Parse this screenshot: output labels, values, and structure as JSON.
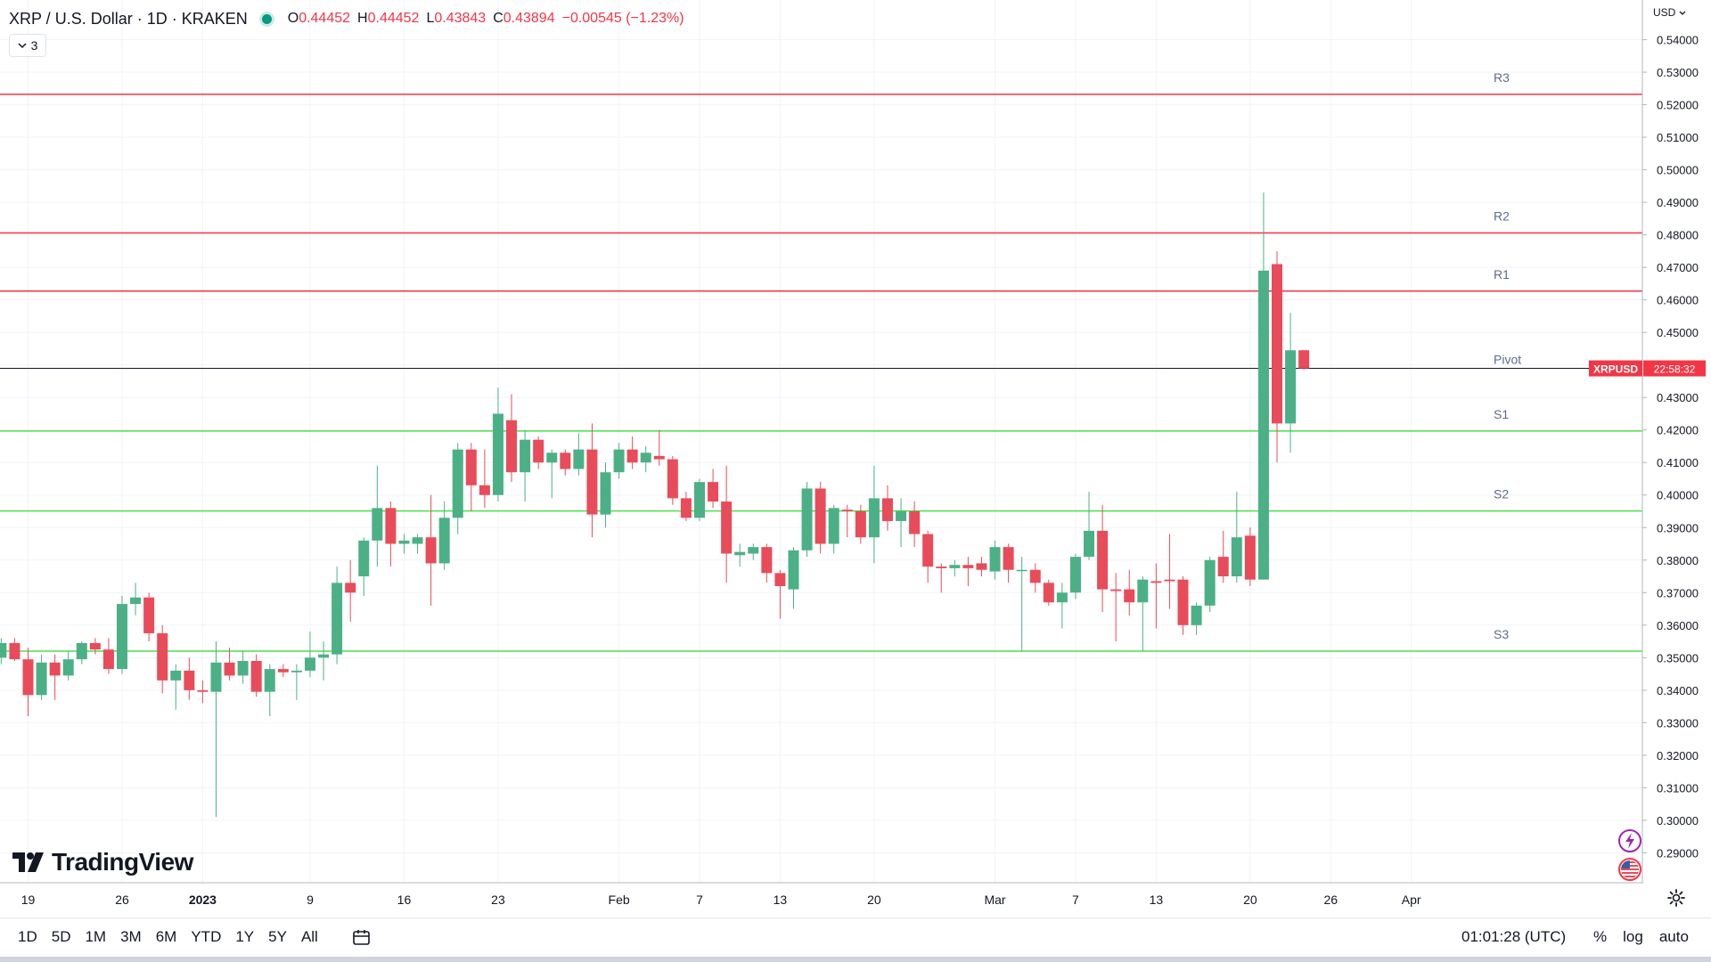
{
  "header": {
    "symbol": "XRP / U.S. Dollar · 1D · KRAKEN",
    "o_label": "O",
    "o_val": "0.44452",
    "h_label": "H",
    "h_val": "0.44452",
    "l_label": "L",
    "l_val": "0.43843",
    "c_label": "C",
    "c_val": "0.43894",
    "change": "−0.00545 (−1.23%)",
    "indicators_count": "3"
  },
  "currency": "USD",
  "branding": "TradingView",
  "bottom": {
    "ranges": [
      "1D",
      "5D",
      "1M",
      "3M",
      "6M",
      "YTD",
      "1Y",
      "5Y",
      "All"
    ],
    "clock": "01:01:28 (UTC)",
    "percent": "%",
    "log": "log",
    "auto": "auto"
  },
  "colors": {
    "up": "#4cb087",
    "down": "#e84c5a",
    "resistance": "#f23645",
    "support": "#4be04b",
    "last": "#131722",
    "price_tag": "#f23645"
  },
  "chart_data": {
    "type": "candlestick",
    "title": "XRP / U.S. Dollar · 1D · KRAKEN",
    "ylim": [
      0.2808,
      0.5522
    ],
    "y_ticks": [
      "0.29000",
      "0.30000",
      "0.31000",
      "0.32000",
      "0.33000",
      "0.34000",
      "0.35000",
      "0.36000",
      "0.37000",
      "0.38000",
      "0.39000",
      "0.40000",
      "0.41000",
      "0.42000",
      "0.43000",
      "0.44000",
      "0.45000",
      "0.46000",
      "0.47000",
      "0.48000",
      "0.49000",
      "0.50000",
      "0.51000",
      "0.52000",
      "0.53000",
      "0.54000"
    ],
    "x_labels": [
      {
        "text": "19",
        "date": "2022-12-19"
      },
      {
        "text": "26",
        "date": "2022-12-26"
      },
      {
        "text": "2023",
        "date": "2023-01-01"
      },
      {
        "text": "9",
        "date": "2023-01-09"
      },
      {
        "text": "16",
        "date": "2023-01-16"
      },
      {
        "text": "23",
        "date": "2023-01-23"
      },
      {
        "text": "Feb",
        "date": "2023-02-01"
      },
      {
        "text": "7",
        "date": "2023-02-07"
      },
      {
        "text": "13",
        "date": "2023-02-13"
      },
      {
        "text": "20",
        "date": "2023-02-20"
      },
      {
        "text": "Mar",
        "date": "2023-03-01"
      },
      {
        "text": "7",
        "date": "2023-03-07"
      },
      {
        "text": "13",
        "date": "2023-03-13"
      },
      {
        "text": "20",
        "date": "2023-03-20"
      },
      {
        "text": "26",
        "date": "2023-03-26"
      },
      {
        "text": "Apr",
        "date": "2023-04-01"
      }
    ],
    "candles": [
      {
        "date": "2022-12-17",
        "o": 0.35,
        "h": 0.356,
        "l": 0.348,
        "c": 0.3545
      },
      {
        "date": "2022-12-18",
        "o": 0.3545,
        "h": 0.356,
        "l": 0.349,
        "c": 0.3495
      },
      {
        "date": "2022-12-19",
        "o": 0.3495,
        "h": 0.353,
        "l": 0.332,
        "c": 0.3385
      },
      {
        "date": "2022-12-20",
        "o": 0.3385,
        "h": 0.351,
        "l": 0.337,
        "c": 0.3485
      },
      {
        "date": "2022-12-21",
        "o": 0.3485,
        "h": 0.351,
        "l": 0.337,
        "c": 0.3445
      },
      {
        "date": "2022-12-22",
        "o": 0.3445,
        "h": 0.352,
        "l": 0.343,
        "c": 0.3495
      },
      {
        "date": "2022-12-23",
        "o": 0.3495,
        "h": 0.355,
        "l": 0.348,
        "c": 0.3545
      },
      {
        "date": "2022-12-24",
        "o": 0.3545,
        "h": 0.356,
        "l": 0.351,
        "c": 0.3525
      },
      {
        "date": "2022-12-25",
        "o": 0.3525,
        "h": 0.356,
        "l": 0.345,
        "c": 0.3465
      },
      {
        "date": "2022-12-26",
        "o": 0.3465,
        "h": 0.369,
        "l": 0.345,
        "c": 0.3665
      },
      {
        "date": "2022-12-27",
        "o": 0.3665,
        "h": 0.373,
        "l": 0.363,
        "c": 0.3685
      },
      {
        "date": "2022-12-28",
        "o": 0.3685,
        "h": 0.37,
        "l": 0.355,
        "c": 0.3575
      },
      {
        "date": "2022-12-29",
        "o": 0.3575,
        "h": 0.36,
        "l": 0.339,
        "c": 0.343
      },
      {
        "date": "2022-12-30",
        "o": 0.343,
        "h": 0.348,
        "l": 0.334,
        "c": 0.346
      },
      {
        "date": "2022-12-31",
        "o": 0.346,
        "h": 0.35,
        "l": 0.337,
        "c": 0.34
      },
      {
        "date": "2023-01-01",
        "o": 0.34,
        "h": 0.343,
        "l": 0.336,
        "c": 0.3395
      },
      {
        "date": "2023-01-02",
        "o": 0.3395,
        "h": 0.355,
        "l": 0.301,
        "c": 0.3485
      },
      {
        "date": "2023-01-03",
        "o": 0.3485,
        "h": 0.353,
        "l": 0.343,
        "c": 0.3445
      },
      {
        "date": "2023-01-04",
        "o": 0.3445,
        "h": 0.352,
        "l": 0.342,
        "c": 0.349
      },
      {
        "date": "2023-01-05",
        "o": 0.349,
        "h": 0.351,
        "l": 0.338,
        "c": 0.3395
      },
      {
        "date": "2023-01-06",
        "o": 0.3395,
        "h": 0.348,
        "l": 0.332,
        "c": 0.3465
      },
      {
        "date": "2023-01-07",
        "o": 0.3465,
        "h": 0.348,
        "l": 0.344,
        "c": 0.3455
      },
      {
        "date": "2023-01-08",
        "o": 0.3455,
        "h": 0.348,
        "l": 0.337,
        "c": 0.346
      },
      {
        "date": "2023-01-09",
        "o": 0.346,
        "h": 0.358,
        "l": 0.344,
        "c": 0.35
      },
      {
        "date": "2023-01-10",
        "o": 0.35,
        "h": 0.355,
        "l": 0.343,
        "c": 0.351
      },
      {
        "date": "2023-01-11",
        "o": 0.351,
        "h": 0.378,
        "l": 0.348,
        "c": 0.373
      },
      {
        "date": "2023-01-12",
        "o": 0.373,
        "h": 0.38,
        "l": 0.361,
        "c": 0.37
      },
      {
        "date": "2023-01-13",
        "o": 0.375,
        "h": 0.387,
        "l": 0.369,
        "c": 0.386
      },
      {
        "date": "2023-01-14",
        "o": 0.386,
        "h": 0.409,
        "l": 0.378,
        "c": 0.396
      },
      {
        "date": "2023-01-15",
        "o": 0.396,
        "h": 0.398,
        "l": 0.378,
        "c": 0.385
      },
      {
        "date": "2023-01-16",
        "o": 0.385,
        "h": 0.388,
        "l": 0.382,
        "c": 0.386
      },
      {
        "date": "2023-01-17",
        "o": 0.385,
        "h": 0.388,
        "l": 0.382,
        "c": 0.387
      },
      {
        "date": "2023-01-18",
        "o": 0.387,
        "h": 0.4,
        "l": 0.366,
        "c": 0.379
      },
      {
        "date": "2023-01-19",
        "o": 0.379,
        "h": 0.398,
        "l": 0.377,
        "c": 0.393
      },
      {
        "date": "2023-01-20",
        "o": 0.393,
        "h": 0.416,
        "l": 0.388,
        "c": 0.414
      },
      {
        "date": "2023-01-21",
        "o": 0.414,
        "h": 0.416,
        "l": 0.395,
        "c": 0.403
      },
      {
        "date": "2023-01-22",
        "o": 0.403,
        "h": 0.414,
        "l": 0.396,
        "c": 0.4
      },
      {
        "date": "2023-01-23",
        "o": 0.4,
        "h": 0.433,
        "l": 0.398,
        "c": 0.425
      },
      {
        "date": "2023-01-24",
        "o": 0.423,
        "h": 0.431,
        "l": 0.404,
        "c": 0.407
      },
      {
        "date": "2023-01-25",
        "o": 0.407,
        "h": 0.42,
        "l": 0.398,
        "c": 0.417
      },
      {
        "date": "2023-01-26",
        "o": 0.417,
        "h": 0.418,
        "l": 0.408,
        "c": 0.41
      },
      {
        "date": "2023-01-27",
        "o": 0.41,
        "h": 0.414,
        "l": 0.399,
        "c": 0.413
      },
      {
        "date": "2023-01-28",
        "o": 0.413,
        "h": 0.414,
        "l": 0.406,
        "c": 0.408
      },
      {
        "date": "2023-01-29",
        "o": 0.408,
        "h": 0.419,
        "l": 0.406,
        "c": 0.414
      },
      {
        "date": "2023-01-30",
        "o": 0.414,
        "h": 0.422,
        "l": 0.387,
        "c": 0.394
      },
      {
        "date": "2023-01-31",
        "o": 0.394,
        "h": 0.41,
        "l": 0.39,
        "c": 0.407
      },
      {
        "date": "2023-02-01",
        "o": 0.407,
        "h": 0.416,
        "l": 0.405,
        "c": 0.414
      },
      {
        "date": "2023-02-02",
        "o": 0.414,
        "h": 0.418,
        "l": 0.408,
        "c": 0.41
      },
      {
        "date": "2023-02-03",
        "o": 0.41,
        "h": 0.415,
        "l": 0.407,
        "c": 0.413
      },
      {
        "date": "2023-02-04",
        "o": 0.412,
        "h": 0.42,
        "l": 0.409,
        "c": 0.411
      },
      {
        "date": "2023-02-05",
        "o": 0.411,
        "h": 0.412,
        "l": 0.397,
        "c": 0.399
      },
      {
        "date": "2023-02-06",
        "o": 0.399,
        "h": 0.401,
        "l": 0.392,
        "c": 0.393
      },
      {
        "date": "2023-02-07",
        "o": 0.393,
        "h": 0.405,
        "l": 0.392,
        "c": 0.404
      },
      {
        "date": "2023-02-08",
        "o": 0.404,
        "h": 0.408,
        "l": 0.396,
        "c": 0.398
      },
      {
        "date": "2023-02-09",
        "o": 0.398,
        "h": 0.409,
        "l": 0.373,
        "c": 0.382
      },
      {
        "date": "2023-02-10",
        "o": 0.3815,
        "h": 0.385,
        "l": 0.378,
        "c": 0.3825
      },
      {
        "date": "2023-02-11",
        "o": 0.382,
        "h": 0.385,
        "l": 0.38,
        "c": 0.384
      },
      {
        "date": "2023-02-12",
        "o": 0.384,
        "h": 0.385,
        "l": 0.373,
        "c": 0.376
      },
      {
        "date": "2023-02-13",
        "o": 0.376,
        "h": 0.377,
        "l": 0.362,
        "c": 0.372
      },
      {
        "date": "2023-02-14",
        "o": 0.371,
        "h": 0.384,
        "l": 0.365,
        "c": 0.383
      },
      {
        "date": "2023-02-15",
        "o": 0.383,
        "h": 0.404,
        "l": 0.381,
        "c": 0.402
      },
      {
        "date": "2023-02-16",
        "o": 0.402,
        "h": 0.404,
        "l": 0.382,
        "c": 0.385
      },
      {
        "date": "2023-02-17",
        "o": 0.385,
        "h": 0.397,
        "l": 0.382,
        "c": 0.396
      },
      {
        "date": "2023-02-18",
        "o": 0.3955,
        "h": 0.397,
        "l": 0.387,
        "c": 0.395
      },
      {
        "date": "2023-02-19",
        "o": 0.395,
        "h": 0.397,
        "l": 0.385,
        "c": 0.387
      },
      {
        "date": "2023-02-20",
        "o": 0.387,
        "h": 0.409,
        "l": 0.379,
        "c": 0.399
      },
      {
        "date": "2023-02-21",
        "o": 0.399,
        "h": 0.403,
        "l": 0.389,
        "c": 0.392
      },
      {
        "date": "2023-02-22",
        "o": 0.392,
        "h": 0.399,
        "l": 0.384,
        "c": 0.395
      },
      {
        "date": "2023-02-23",
        "o": 0.395,
        "h": 0.398,
        "l": 0.384,
        "c": 0.388
      },
      {
        "date": "2023-02-24",
        "o": 0.388,
        "h": 0.389,
        "l": 0.373,
        "c": 0.378
      },
      {
        "date": "2023-02-25",
        "o": 0.378,
        "h": 0.379,
        "l": 0.37,
        "c": 0.3775
      },
      {
        "date": "2023-02-26",
        "o": 0.3775,
        "h": 0.38,
        "l": 0.375,
        "c": 0.3785
      },
      {
        "date": "2023-02-27",
        "o": 0.3785,
        "h": 0.381,
        "l": 0.372,
        "c": 0.3775
      },
      {
        "date": "2023-02-28",
        "o": 0.379,
        "h": 0.381,
        "l": 0.375,
        "c": 0.377
      },
      {
        "date": "2023-03-01",
        "o": 0.3765,
        "h": 0.386,
        "l": 0.374,
        "c": 0.384
      },
      {
        "date": "2023-03-02",
        "o": 0.384,
        "h": 0.385,
        "l": 0.373,
        "c": 0.377
      },
      {
        "date": "2023-03-03",
        "o": 0.377,
        "h": 0.381,
        "l": 0.352,
        "c": 0.377
      },
      {
        "date": "2023-03-04",
        "o": 0.377,
        "h": 0.379,
        "l": 0.37,
        "c": 0.373
      },
      {
        "date": "2023-03-05",
        "o": 0.373,
        "h": 0.374,
        "l": 0.366,
        "c": 0.367
      },
      {
        "date": "2023-03-06",
        "o": 0.367,
        "h": 0.373,
        "l": 0.359,
        "c": 0.37
      },
      {
        "date": "2023-03-07",
        "o": 0.37,
        "h": 0.382,
        "l": 0.368,
        "c": 0.381
      },
      {
        "date": "2023-03-08",
        "o": 0.381,
        "h": 0.401,
        "l": 0.38,
        "c": 0.389
      },
      {
        "date": "2023-03-09",
        "o": 0.389,
        "h": 0.397,
        "l": 0.364,
        "c": 0.371
      },
      {
        "date": "2023-03-10",
        "o": 0.371,
        "h": 0.376,
        "l": 0.355,
        "c": 0.3705
      },
      {
        "date": "2023-03-11",
        "o": 0.371,
        "h": 0.377,
        "l": 0.363,
        "c": 0.367
      },
      {
        "date": "2023-03-12",
        "o": 0.367,
        "h": 0.375,
        "l": 0.352,
        "c": 0.374
      },
      {
        "date": "2023-03-13",
        "o": 0.3735,
        "h": 0.379,
        "l": 0.359,
        "c": 0.373
      },
      {
        "date": "2023-03-14",
        "o": 0.374,
        "h": 0.388,
        "l": 0.365,
        "c": 0.3735
      },
      {
        "date": "2023-03-15",
        "o": 0.374,
        "h": 0.375,
        "l": 0.357,
        "c": 0.36
      },
      {
        "date": "2023-03-16",
        "o": 0.36,
        "h": 0.367,
        "l": 0.357,
        "c": 0.366
      },
      {
        "date": "2023-03-17",
        "o": 0.366,
        "h": 0.381,
        "l": 0.364,
        "c": 0.38
      },
      {
        "date": "2023-03-18",
        "o": 0.381,
        "h": 0.389,
        "l": 0.373,
        "c": 0.375
      },
      {
        "date": "2023-03-19",
        "o": 0.375,
        "h": 0.401,
        "l": 0.373,
        "c": 0.387
      },
      {
        "date": "2023-03-20",
        "o": 0.3875,
        "h": 0.39,
        "l": 0.372,
        "c": 0.374
      },
      {
        "date": "2023-03-21",
        "o": 0.374,
        "h": 0.493,
        "l": 0.374,
        "c": 0.469
      },
      {
        "date": "2023-03-22",
        "o": 0.471,
        "h": 0.475,
        "l": 0.41,
        "c": 0.422
      },
      {
        "date": "2023-03-23",
        "o": 0.422,
        "h": 0.456,
        "l": 0.413,
        "c": 0.4445
      },
      {
        "date": "2023-03-24",
        "o": 0.44452,
        "h": 0.44452,
        "l": 0.43843,
        "c": 0.43894
      }
    ],
    "levels": [
      {
        "name": "R3",
        "value": 0.5232,
        "kind": "resistance"
      },
      {
        "name": "R2",
        "value": 0.4806,
        "kind": "resistance"
      },
      {
        "name": "R1",
        "value": 0.4627,
        "kind": "resistance"
      },
      {
        "name": "Pivot",
        "value": null,
        "kind": "pivot"
      },
      {
        "name": "S1",
        "value": 0.4197,
        "kind": "support"
      },
      {
        "name": "S2",
        "value": 0.3951,
        "kind": "support"
      },
      {
        "name": "S3",
        "value": 0.352,
        "kind": "support"
      }
    ],
    "last_price": 0.43894,
    "price_tag": {
      "symbol": "XRPUSD",
      "countdown": "22:58:32"
    },
    "grid": true
  }
}
